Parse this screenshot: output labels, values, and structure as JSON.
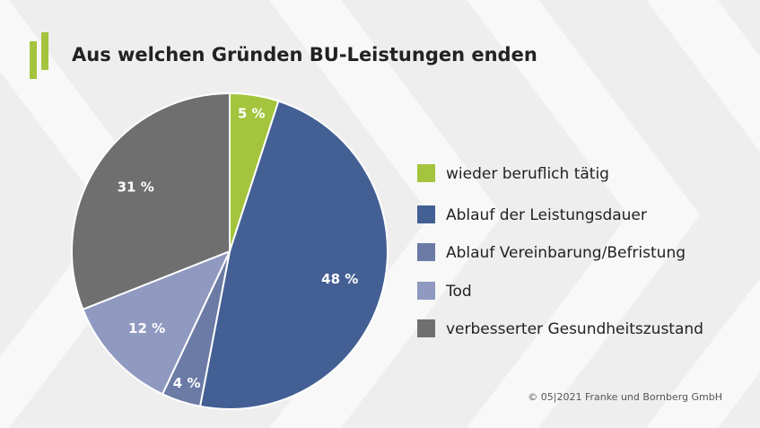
{
  "chart_data": {
    "type": "pie",
    "title": "Aus welchen Gründen BU-Leistungen enden",
    "categories": [
      "wieder beruflich tätig",
      "Ablauf der Leistungsdauer",
      "Ablauf Vereinbarung/Befristung",
      "Tod",
      "verbesserter Gesundheitszustand"
    ],
    "values": [
      5,
      48,
      4,
      12,
      31
    ],
    "value_labels": [
      "5 %",
      "48 %",
      "4 %",
      "12 %",
      "31 %"
    ],
    "colors": [
      "#a3c43c",
      "#435f94",
      "#6b7ba6",
      "#9099c0",
      "#6f6f6f"
    ],
    "source": "© 05|2021 Franke und Bornberg GmbH"
  }
}
